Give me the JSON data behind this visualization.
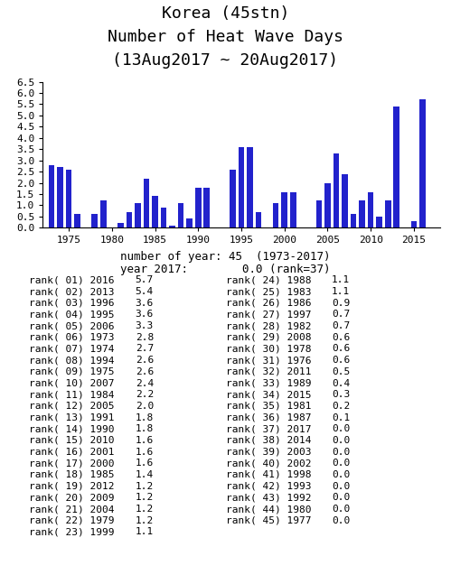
{
  "title1": "Korea (45stn)",
  "title2": "Number of Heat Wave Days",
  "title3": "(13Aug2017 ~ 20Aug2017)",
  "bar_data": {
    "1973": 2.8,
    "1974": 2.7,
    "1975": 2.6,
    "1976": 0.6,
    "1977": 0.0,
    "1978": 0.6,
    "1979": 1.2,
    "1980": 0.0,
    "1981": 0.2,
    "1982": 0.7,
    "1983": 1.1,
    "1984": 2.2,
    "1985": 1.4,
    "1986": 0.9,
    "1987": 0.1,
    "1988": 1.1,
    "1989": 0.4,
    "1990": 1.8,
    "1991": 1.8,
    "1992": 0.0,
    "1993": 0.0,
    "1994": 2.6,
    "1995": 3.6,
    "1996": 3.6,
    "1997": 0.7,
    "1998": 0.0,
    "1999": 1.1,
    "2000": 1.6,
    "2001": 1.6,
    "2002": 0.0,
    "2003": 0.0,
    "2004": 1.2,
    "2005": 2.0,
    "2006": 3.3,
    "2007": 2.4,
    "2008": 0.6,
    "2009": 1.2,
    "2010": 1.6,
    "2011": 0.5,
    "2012": 1.2,
    "2013": 5.4,
    "2014": 0.0,
    "2015": 0.3,
    "2016": 5.7,
    "2017": 0.0
  },
  "bar_color": "#2222cc",
  "xlim": [
    1972,
    2018
  ],
  "ylim": [
    0,
    6.5
  ],
  "yticks": [
    0,
    0.5,
    1,
    1.5,
    2,
    2.5,
    3,
    3.5,
    4,
    4.5,
    5,
    5.5,
    6,
    6.5
  ],
  "xticks": [
    1975,
    1980,
    1985,
    1990,
    1995,
    2000,
    2005,
    2010,
    2015
  ],
  "info_line1": "number of year: 45  (1973-2017)",
  "info_line2": "year 2017:        0.0 (rank=37)",
  "ranks": [
    [
      "rank( 01) 2016",
      "5.7",
      "rank( 24) 1988",
      "1.1"
    ],
    [
      "rank( 02) 2013",
      "5.4",
      "rank( 25) 1983",
      "1.1"
    ],
    [
      "rank( 03) 1996",
      "3.6",
      "rank( 26) 1986",
      "0.9"
    ],
    [
      "rank( 04) 1995",
      "3.6",
      "rank( 27) 1997",
      "0.7"
    ],
    [
      "rank( 05) 2006",
      "3.3",
      "rank( 28) 1982",
      "0.7"
    ],
    [
      "rank( 06) 1973",
      "2.8",
      "rank( 29) 2008",
      "0.6"
    ],
    [
      "rank( 07) 1974",
      "2.7",
      "rank( 30) 1978",
      "0.6"
    ],
    [
      "rank( 08) 1994",
      "2.6",
      "rank( 31) 1976",
      "0.6"
    ],
    [
      "rank( 09) 1975",
      "2.6",
      "rank( 32) 2011",
      "0.5"
    ],
    [
      "rank( 10) 2007",
      "2.4",
      "rank( 33) 1989",
      "0.4"
    ],
    [
      "rank( 11) 1984",
      "2.2",
      "rank( 34) 2015",
      "0.3"
    ],
    [
      "rank( 12) 2005",
      "2.0",
      "rank( 35) 1981",
      "0.2"
    ],
    [
      "rank( 13) 1991",
      "1.8",
      "rank( 36) 1987",
      "0.1"
    ],
    [
      "rank( 14) 1990",
      "1.8",
      "rank( 37) 2017",
      "0.0"
    ],
    [
      "rank( 15) 2010",
      "1.6",
      "rank( 38) 2014",
      "0.0"
    ],
    [
      "rank( 16) 2001",
      "1.6",
      "rank( 39) 2003",
      "0.0"
    ],
    [
      "rank( 17) 2000",
      "1.6",
      "rank( 40) 2002",
      "0.0"
    ],
    [
      "rank( 18) 1985",
      "1.4",
      "rank( 41) 1998",
      "0.0"
    ],
    [
      "rank( 19) 2012",
      "1.2",
      "rank( 42) 1993",
      "0.0"
    ],
    [
      "rank( 20) 2009",
      "1.2",
      "rank( 43) 1992",
      "0.0"
    ],
    [
      "rank( 21) 2004",
      "1.2",
      "rank( 44) 1980",
      "0.0"
    ],
    [
      "rank( 22) 1979",
      "1.2",
      "rank( 45) 1977",
      "0.0"
    ],
    [
      "rank( 23) 1999",
      "1.1",
      "",
      ""
    ]
  ],
  "bg_color": "#ffffff",
  "title_fontsize": 13,
  "axis_fontsize": 8,
  "table_fontsize": 8,
  "info_fontsize": 9
}
